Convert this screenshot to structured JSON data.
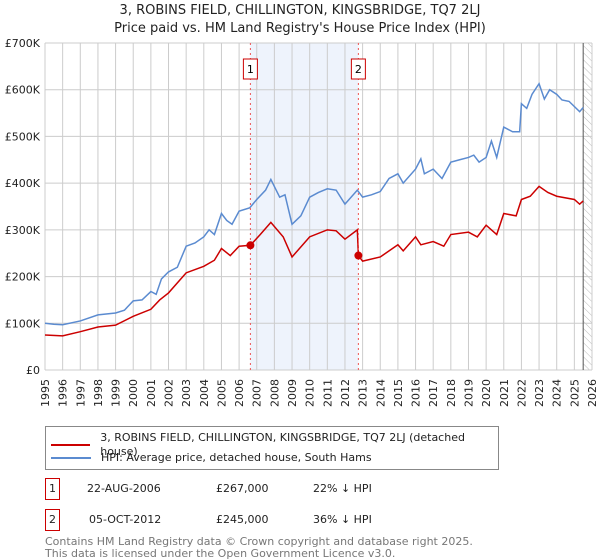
{
  "chart_data": {
    "type": "line",
    "title": "3, ROBINS FIELD, CHILLINGTON, KINGSBRIDGE, TQ7 2LJ",
    "subtitle": "Price paid vs. HM Land Registry's House Price Index (HPI)",
    "xlim": [
      1995,
      2026
    ],
    "ylim": [
      0,
      700000
    ],
    "yticks": [
      {
        "v": 0,
        "l": "£0"
      },
      {
        "v": 100000,
        "l": "£100K"
      },
      {
        "v": 200000,
        "l": "£200K"
      },
      {
        "v": 300000,
        "l": "£300K"
      },
      {
        "v": 400000,
        "l": "£400K"
      },
      {
        "v": 500000,
        "l": "£500K"
      },
      {
        "v": 600000,
        "l": "£600K"
      },
      {
        "v": 700000,
        "l": "£700K"
      }
    ],
    "xticks": [
      "1995",
      "1996",
      "1997",
      "1998",
      "1999",
      "2000",
      "2001",
      "2002",
      "2003",
      "2004",
      "2005",
      "2006",
      "2007",
      "2008",
      "2009",
      "2010",
      "2011",
      "2012",
      "2013",
      "2014",
      "2015",
      "2016",
      "2017",
      "2018",
      "2019",
      "2020",
      "2021",
      "2022",
      "2023",
      "2024",
      "2025",
      "2026"
    ],
    "series": [
      {
        "name": "3, ROBINS FIELD, CHILLINGTON, KINGSBRIDGE, TQ7 2LJ (detached house)",
        "color": "#cc0000",
        "points": [
          [
            1995,
            75000
          ],
          [
            1996,
            73000
          ],
          [
            1997,
            82000
          ],
          [
            1998,
            92000
          ],
          [
            1999,
            96000
          ],
          [
            2000,
            115000
          ],
          [
            2001,
            130000
          ],
          [
            2001.5,
            150000
          ],
          [
            2002,
            165000
          ],
          [
            2003,
            208000
          ],
          [
            2004,
            222000
          ],
          [
            2004.6,
            235000
          ],
          [
            2005,
            260000
          ],
          [
            2005.5,
            245000
          ],
          [
            2006,
            265000
          ],
          [
            2006.64,
            267000
          ],
          [
            2007.2,
            290000
          ],
          [
            2007.8,
            316000
          ],
          [
            2008.5,
            285000
          ],
          [
            2009,
            242000
          ],
          [
            2010,
            285000
          ],
          [
            2011,
            300000
          ],
          [
            2011.5,
            298000
          ],
          [
            2012,
            280000
          ],
          [
            2012.7,
            300000
          ],
          [
            2012.76,
            245000
          ],
          [
            2013,
            233000
          ],
          [
            2014,
            242000
          ],
          [
            2015,
            268000
          ],
          [
            2015.3,
            255000
          ],
          [
            2016,
            285000
          ],
          [
            2016.3,
            268000
          ],
          [
            2017,
            275000
          ],
          [
            2017.6,
            265000
          ],
          [
            2018,
            290000
          ],
          [
            2019,
            295000
          ],
          [
            2019.5,
            285000
          ],
          [
            2020,
            310000
          ],
          [
            2020.6,
            290000
          ],
          [
            2021,
            335000
          ],
          [
            2021.7,
            330000
          ],
          [
            2022,
            365000
          ],
          [
            2022.5,
            372000
          ],
          [
            2023,
            393000
          ],
          [
            2023.5,
            380000
          ],
          [
            2024,
            372000
          ],
          [
            2025,
            365000
          ],
          [
            2025.3,
            355000
          ],
          [
            2025.5,
            362000
          ]
        ]
      },
      {
        "name": "HPI: Average price, detached house, South Hams",
        "color": "#5b8bd0",
        "points": [
          [
            1995,
            100000
          ],
          [
            1995.5,
            98000
          ],
          [
            1996,
            97000
          ],
          [
            1997,
            105000
          ],
          [
            1998,
            118000
          ],
          [
            1999,
            122000
          ],
          [
            1999.5,
            128000
          ],
          [
            2000,
            148000
          ],
          [
            2000.5,
            150000
          ],
          [
            2001,
            168000
          ],
          [
            2001.3,
            162000
          ],
          [
            2001.6,
            195000
          ],
          [
            2002,
            210000
          ],
          [
            2002.5,
            220000
          ],
          [
            2003,
            265000
          ],
          [
            2003.5,
            272000
          ],
          [
            2004,
            285000
          ],
          [
            2004.3,
            300000
          ],
          [
            2004.6,
            290000
          ],
          [
            2005,
            335000
          ],
          [
            2005.3,
            320000
          ],
          [
            2005.6,
            312000
          ],
          [
            2006,
            340000
          ],
          [
            2006.6,
            347000
          ],
          [
            2007,
            365000
          ],
          [
            2007.5,
            385000
          ],
          [
            2007.8,
            408000
          ],
          [
            2008.3,
            370000
          ],
          [
            2008.6,
            375000
          ],
          [
            2009,
            312000
          ],
          [
            2009.5,
            330000
          ],
          [
            2010,
            370000
          ],
          [
            2010.5,
            380000
          ],
          [
            2011,
            388000
          ],
          [
            2011.5,
            385000
          ],
          [
            2012,
            355000
          ],
          [
            2012.7,
            385000
          ],
          [
            2013,
            370000
          ],
          [
            2013.5,
            375000
          ],
          [
            2014,
            382000
          ],
          [
            2014.5,
            410000
          ],
          [
            2015,
            420000
          ],
          [
            2015.3,
            400000
          ],
          [
            2016,
            430000
          ],
          [
            2016.3,
            452000
          ],
          [
            2016.5,
            420000
          ],
          [
            2017,
            430000
          ],
          [
            2017.5,
            410000
          ],
          [
            2018,
            445000
          ],
          [
            2018.5,
            450000
          ],
          [
            2019,
            455000
          ],
          [
            2019.3,
            460000
          ],
          [
            2019.6,
            445000
          ],
          [
            2020,
            455000
          ],
          [
            2020.3,
            490000
          ],
          [
            2020.6,
            455000
          ],
          [
            2021,
            520000
          ],
          [
            2021.5,
            510000
          ],
          [
            2021.9,
            510000
          ],
          [
            2022,
            570000
          ],
          [
            2022.3,
            560000
          ],
          [
            2022.6,
            590000
          ],
          [
            2023,
            613000
          ],
          [
            2023.3,
            580000
          ],
          [
            2023.6,
            600000
          ],
          [
            2024,
            590000
          ],
          [
            2024.3,
            578000
          ],
          [
            2024.7,
            575000
          ],
          [
            2025.3,
            553000
          ],
          [
            2025.5,
            562000
          ]
        ]
      }
    ],
    "sales": [
      {
        "label": "1",
        "x": 2006.64,
        "price": 267000
      },
      {
        "label": "2",
        "x": 2012.76,
        "price": 245000
      }
    ],
    "shaded_range": [
      2006.64,
      2012.76
    ],
    "forecast_from": 2025.5
  },
  "legend": {
    "red": "3, ROBINS FIELD, CHILLINGTON, KINGSBRIDGE, TQ7 2LJ (detached house)",
    "blue": "HPI: Average price, detached house, South Hams"
  },
  "transactions": [
    {
      "num": "1",
      "date": "22-AUG-2006",
      "price": "£267,000",
      "hpi": "22% ↓ HPI"
    },
    {
      "num": "2",
      "date": "05-OCT-2012",
      "price": "£245,000",
      "hpi": "36% ↓ HPI"
    }
  ],
  "footer": {
    "line1": "Contains HM Land Registry data © Crown copyright and database right 2025.",
    "line2": "This data is licensed under the Open Government Licence v3.0."
  }
}
